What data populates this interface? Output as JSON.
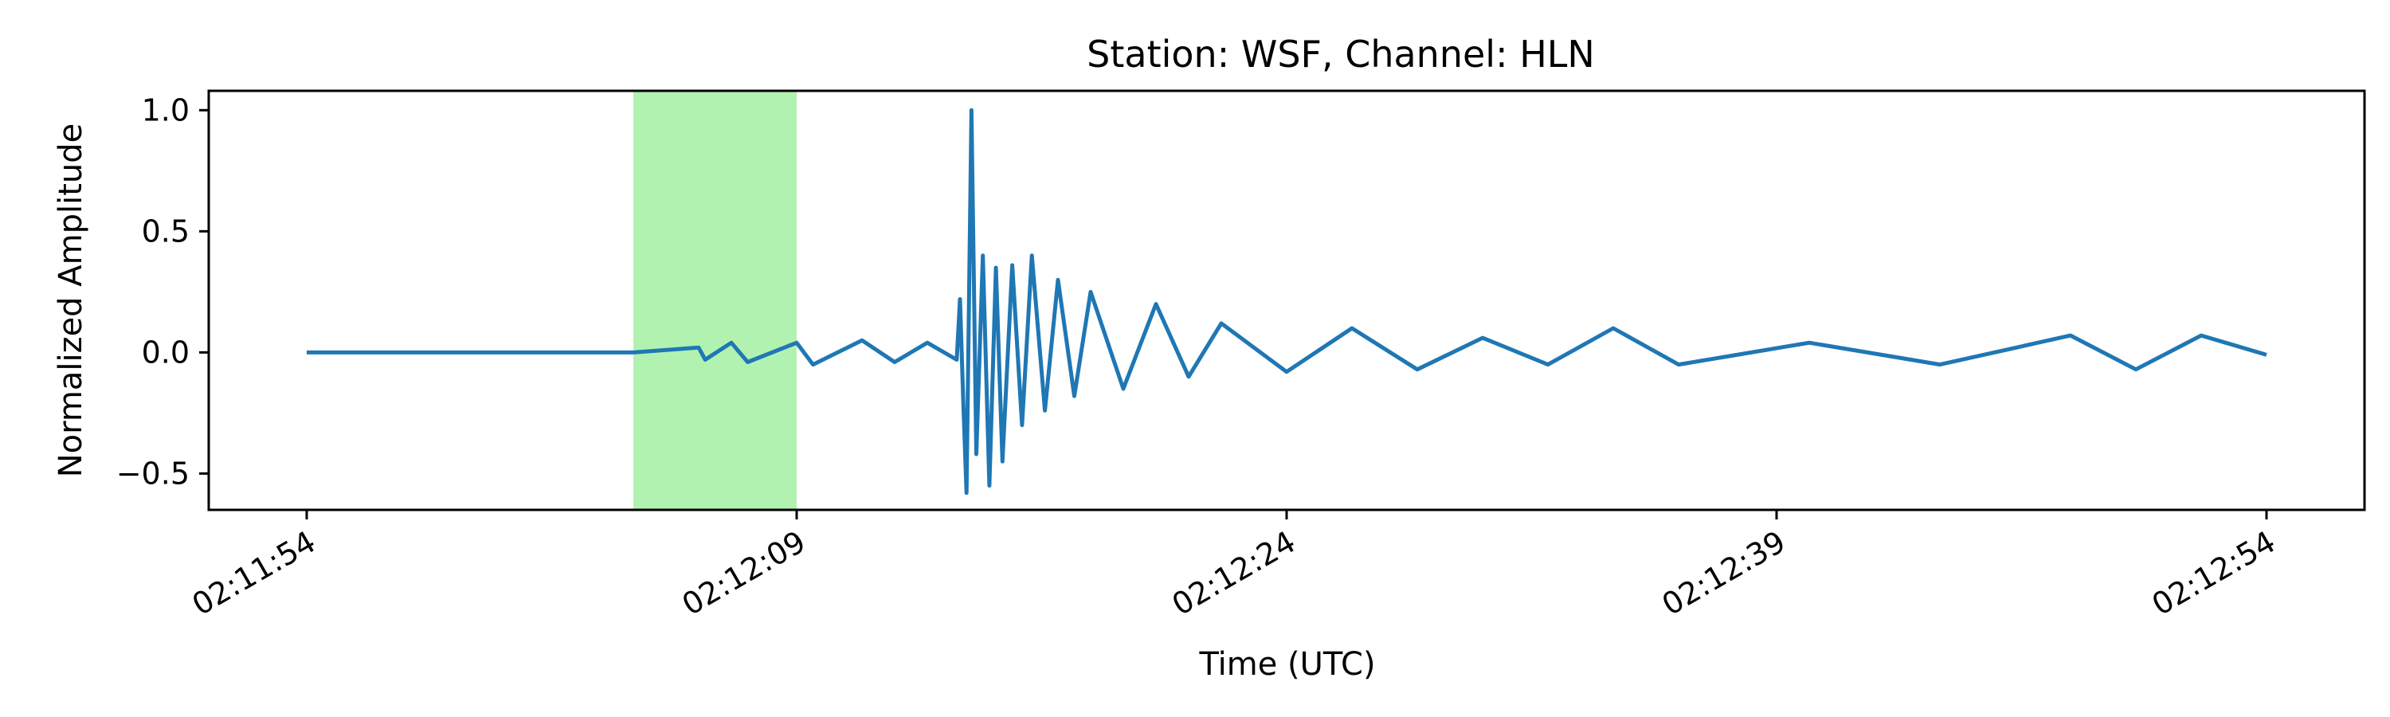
{
  "chart_data": {
    "type": "line",
    "title": "Station: WSF, Channel: HLN",
    "xlabel": "Time (UTC)",
    "ylabel": "Normalized Amplitude",
    "xlim": [
      "02:11:51",
      "02:12:57"
    ],
    "ylim": [
      -0.65,
      1.08
    ],
    "xticks": [
      {
        "value": "02:11:54",
        "label": "02:11:54"
      },
      {
        "value": "02:12:09",
        "label": "02:12:09"
      },
      {
        "value": "02:12:24",
        "label": "02:12:24"
      },
      {
        "value": "02:12:39",
        "label": "02:12:39"
      },
      {
        "value": "02:12:54",
        "label": "02:12:54"
      }
    ],
    "yticks": [
      {
        "value": -0.5,
        "label": "−0.5"
      },
      {
        "value": 0.0,
        "label": "0.0"
      },
      {
        "value": 0.5,
        "label": "0.5"
      },
      {
        "value": 1.0,
        "label": "1.0"
      }
    ],
    "highlight_window": {
      "start": "02:12:04",
      "end": "02:12:09",
      "color": "#b2f2b0"
    },
    "series": [
      {
        "color": "#1f77b4",
        "x_start": "02:11:54",
        "x_end": "02:12:54",
        "points": [
          [
            "02:11:54",
            0.0
          ],
          [
            "02:12:04",
            0.0
          ],
          [
            "02:12:06",
            0.02
          ],
          [
            "02:12:06.2",
            -0.03
          ],
          [
            "02:12:07",
            0.04
          ],
          [
            "02:12:07.5",
            -0.04
          ],
          [
            "02:12:09",
            0.04
          ],
          [
            "02:12:09.5",
            -0.05
          ],
          [
            "02:12:11",
            0.05
          ],
          [
            "02:12:12",
            -0.04
          ],
          [
            "02:12:13",
            0.04
          ],
          [
            "02:12:13.9",
            -0.03
          ],
          [
            "02:12:14.0",
            0.22
          ],
          [
            "02:12:14.1",
            -0.2
          ],
          [
            "02:12:14.2",
            -0.58
          ],
          [
            "02:12:14.35",
            1.0
          ],
          [
            "02:12:14.5",
            -0.42
          ],
          [
            "02:12:14.7",
            0.4
          ],
          [
            "02:12:14.9",
            -0.55
          ],
          [
            "02:12:15.1",
            0.35
          ],
          [
            "02:12:15.3",
            -0.45
          ],
          [
            "02:12:15.6",
            0.36
          ],
          [
            "02:12:15.9",
            -0.3
          ],
          [
            "02:12:16.2",
            0.4
          ],
          [
            "02:12:16.6",
            -0.24
          ],
          [
            "02:12:17.0",
            0.3
          ],
          [
            "02:12:17.5",
            -0.18
          ],
          [
            "02:12:18.0",
            0.25
          ],
          [
            "02:12:19.0",
            -0.15
          ],
          [
            "02:12:20.0",
            0.2
          ],
          [
            "02:12:21.0",
            -0.1
          ],
          [
            "02:12:22.0",
            0.12
          ],
          [
            "02:12:24.0",
            -0.08
          ],
          [
            "02:12:26.0",
            0.1
          ],
          [
            "02:12:28.0",
            -0.07
          ],
          [
            "02:12:30.0",
            0.06
          ],
          [
            "02:12:32.0",
            -0.05
          ],
          [
            "02:12:34.0",
            0.1
          ],
          [
            "02:12:36.0",
            -0.05
          ],
          [
            "02:12:40.0",
            0.04
          ],
          [
            "02:12:44.0",
            -0.05
          ],
          [
            "02:12:48.0",
            0.07
          ],
          [
            "02:12:50.0",
            -0.07
          ],
          [
            "02:12:52.0",
            0.07
          ],
          [
            "02:12:54.0",
            -0.01
          ]
        ]
      }
    ],
    "grid": false,
    "legend": "none"
  }
}
